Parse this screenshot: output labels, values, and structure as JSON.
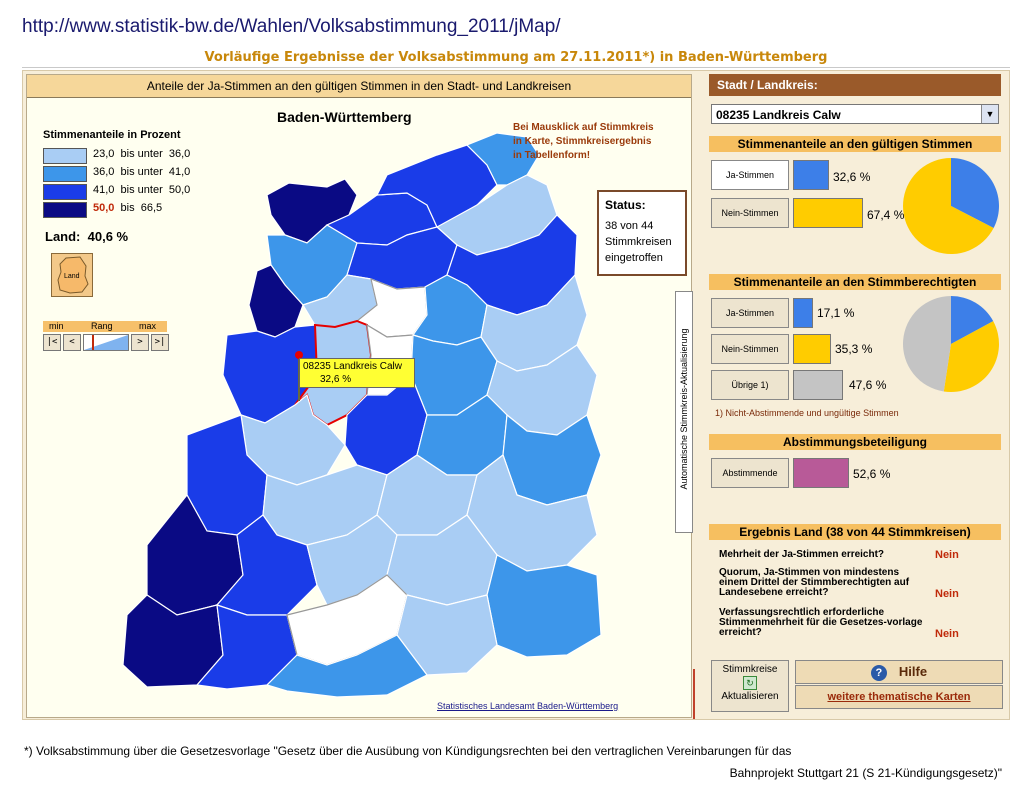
{
  "url": "http://www.statistik-bw.de/Wahlen/Volksabstimmung_2011/jMap/",
  "subtitle": "Vorläufige Ergebnisse der Volksabstimmung am 27.11.2011*) in Baden-Württemberg",
  "map": {
    "title": "Anteile der Ja-Stimmen an den gültigen Stimmen in den Stadt- und Landkreisen",
    "region_title": "Baden-Württemberg",
    "legend_title": "Stimmenanteile in Prozent",
    "legend": [
      {
        "from": "23,0",
        "sep": "bis unter",
        "to": "36,0",
        "color": "#a9cdf4"
      },
      {
        "from": "36,0",
        "sep": "bis unter",
        "to": "41,0",
        "color": "#3d96ea"
      },
      {
        "from": "41,0",
        "sep": "bis unter",
        "to": "50,0",
        "color": "#1a3ce8"
      },
      {
        "from": "50,0",
        "sep": "bis",
        "to": "66,5",
        "color": "#0a0a84"
      }
    ],
    "land_label": "Land:",
    "land_value": "40,6 %",
    "land_icon_label": "Land",
    "rank": {
      "min": "min",
      "rang": "Rang",
      "max": "max",
      "first": "|<",
      "prev": "<",
      "next": ">",
      "last": ">|"
    },
    "hint": [
      "Bei Mausklick auf Stimmkreis",
      "in Karte, Stimmkreisergebnis",
      "in Tabellenform!"
    ],
    "status_title": "Status:",
    "status_lines": [
      "38 von 44",
      "Stimmkreisen",
      "eingetroffen"
    ],
    "vertical_label": "Automatische Stimmkreis-Aktualisierung",
    "tooltip_name": "08235 Landkreis Calw",
    "tooltip_value": "32,6 %",
    "credit": "Statistisches Landesamt Baden-Württemberg"
  },
  "panel": {
    "header": "Stadt / Landkreis:",
    "selected_district": "08235 Landkreis Calw",
    "section_valid": "Stimmenanteile an den gültigen Stimmen",
    "valid": [
      {
        "label": "Ja-Stimmen",
        "value": "32,6 %",
        "pct": 32.6,
        "color": "#3d7fe8"
      },
      {
        "label": "Nein-Stimmen",
        "value": "67,4 %",
        "pct": 67.4,
        "color": "#ffcc00"
      }
    ],
    "section_eligible": "Stimmenanteile an den Stimmberechtigten",
    "eligible": [
      {
        "label": "Ja-Stimmen",
        "value": "17,1 %",
        "pct": 17.1,
        "color": "#3d7fe8"
      },
      {
        "label": "Nein-Stimmen",
        "value": "35,3 %",
        "pct": 35.3,
        "color": "#ffcc00"
      },
      {
        "label": "Übrige 1)",
        "value": "47,6 %",
        "pct": 47.6,
        "color": "#c4c4c4"
      }
    ],
    "note": "1) Nicht-Abstimmende und ungültige Stimmen",
    "section_turnout": "Abstimmungsbeteiligung",
    "turnout": {
      "label": "Abstimmende",
      "value": "52,6 %",
      "pct": 52.6,
      "color": "#b85a98"
    },
    "section_result": "Ergebnis Land  (38 von 44 Stimmkreisen)",
    "results": [
      {
        "q": "Mehrheit der Ja-Stimmen erreicht?",
        "a": "Nein"
      },
      {
        "q": "Quorum, Ja-Stimmen von mindestens einem Drittel der Stimmberechtigten auf Landesebene erreicht?",
        "a": "Nein"
      },
      {
        "q": "Verfassungsrechtlich erforderliche Stimmenmehrheit für die Gesetzes-vorlage erreicht?",
        "a": "Nein"
      }
    ],
    "refresh_label_1": "Stimmkreise",
    "refresh_label_2": "Aktualisieren",
    "help_label": "Hilfe",
    "more_maps_label": "weitere thematische Karten"
  },
  "footnote_1": "*) Volksabstimmung über die Gesetzesvorlage \"Gesetz über die Ausübung von Kündigungsrechten bei den vertraglichen Vereinbarungen für das",
  "footnote_2": "Bahnprojekt Stuttgart 21 (S 21-Kündigungsgesetz)\""
}
